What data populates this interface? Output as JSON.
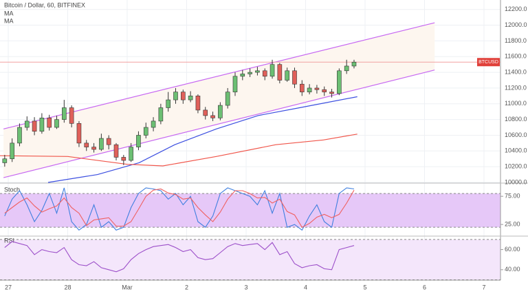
{
  "chart_data": [
    {
      "type": "candlestick",
      "title": "Bitcoin / Dollar, 60, BITFINEX",
      "x": [
        -0.06,
        0.065,
        0.19,
        0.315,
        0.44,
        0.565,
        0.69,
        0.815,
        0.94,
        1.065,
        1.19,
        1.315,
        1.44,
        1.565,
        1.69,
        1.815,
        1.94,
        2.065,
        2.19,
        2.315,
        2.44,
        2.565,
        2.69,
        2.815,
        2.94,
        3.065,
        3.19,
        3.315,
        3.44,
        3.565,
        3.69,
        3.815,
        3.94,
        4.065,
        4.19,
        4.315,
        4.44,
        4.565,
        4.69,
        4.815,
        4.94,
        5.065,
        5.19,
        5.315,
        5.44,
        5.565,
        5.69,
        5.815
      ],
      "open": [
        10250,
        10300,
        10500,
        10700,
        10780,
        10650,
        10820,
        10700,
        10800,
        10950,
        10750,
        10500,
        10450,
        10420,
        10560,
        10480,
        10320,
        10280,
        10450,
        10600,
        10700,
        10780,
        10950,
        11050,
        11150,
        11050,
        11100,
        10920,
        10850,
        10820,
        10980,
        11150,
        11350,
        11380,
        11400,
        11420,
        11350,
        11500,
        11300,
        11420,
        11250,
        11150,
        11200,
        11180,
        11150,
        11130,
        11420,
        11480
      ],
      "high": [
        10350,
        10560,
        10750,
        10840,
        10830,
        10880,
        10860,
        10850,
        11050,
        10980,
        10780,
        10540,
        10500,
        10620,
        10600,
        10500,
        10350,
        10500,
        10650,
        10760,
        10830,
        11000,
        11150,
        11200,
        11180,
        11160,
        11120,
        10960,
        10900,
        11020,
        11200,
        11400,
        11430,
        11450,
        11470,
        11450,
        11560,
        11520,
        11460,
        11460,
        11300,
        11250,
        11240,
        11220,
        11190,
        11450,
        11560,
        11560
      ],
      "low": [
        10200,
        10260,
        10460,
        10660,
        10600,
        10620,
        10660,
        10680,
        10760,
        10700,
        10450,
        10400,
        10380,
        10400,
        10420,
        10280,
        10220,
        10260,
        10410,
        10560,
        10650,
        10740,
        10900,
        11000,
        11000,
        11020,
        10880,
        10800,
        10780,
        10790,
        10940,
        11100,
        11300,
        11340,
        11360,
        11300,
        11320,
        11260,
        11280,
        11200,
        11100,
        11120,
        11130,
        11100,
        11080,
        11110,
        11380,
        11450
      ],
      "close": [
        10300,
        10500,
        10700,
        10780,
        10650,
        10820,
        10700,
        10800,
        10950,
        10750,
        10500,
        10450,
        10420,
        10560,
        10480,
        10320,
        10280,
        10450,
        10600,
        10700,
        10780,
        10950,
        11050,
        11150,
        11050,
        11100,
        10920,
        10850,
        10820,
        10980,
        11150,
        11350,
        11380,
        11400,
        11420,
        11350,
        11500,
        11300,
        11420,
        11250,
        11150,
        11200,
        11180,
        11150,
        11130,
        11420,
        11480,
        11530
      ],
      "up_color": "#6cbf73",
      "down_color": "#e0605a",
      "ma": [
        {
          "name": "MA",
          "color": "#3b4ee0",
          "x": [
            0.67,
            1.5,
            2.2,
            2.8,
            3.5,
            4.2,
            4.9,
            5.87
          ],
          "values": [
            10000,
            10100,
            10250,
            10480,
            10680,
            10850,
            10950,
            11090
          ]
        },
        {
          "name": "MA",
          "color": "#f0554a",
          "x": [
            -0.14,
            1,
            2,
            2.6,
            3.5,
            4.5,
            5.3,
            5.87
          ],
          "values": [
            10340,
            10330,
            10230,
            10210,
            10330,
            10480,
            10540,
            10615
          ]
        }
      ],
      "channel_color": "#c768f2",
      "channel": [
        {
          "x": [
            -0.08,
            7.17
          ],
          "values": [
            10680,
            12030
          ]
        },
        {
          "x": [
            -0.08,
            7.17
          ],
          "values": [
            10060,
            11430
          ]
        }
      ],
      "last_price": 11530,
      "last_price_label": "BTCUSD",
      "xlim": [
        -0.139,
        8.278
      ],
      "xticks": [
        {
          "value": 0,
          "label": "27"
        },
        {
          "value": 1,
          "label": "28"
        },
        {
          "value": 2,
          "label": "Mar"
        },
        {
          "value": 3,
          "label": "2"
        },
        {
          "value": 4,
          "label": "3"
        },
        {
          "value": 5,
          "label": "4"
        },
        {
          "value": 6,
          "label": "5"
        },
        {
          "value": 7,
          "label": "6"
        },
        {
          "value": 8,
          "label": "7"
        }
      ],
      "ylim": [
        10000,
        12320
      ],
      "yticks": [
        {
          "value": 10000,
          "label": "10000.0"
        },
        {
          "value": 10200,
          "label": "10200.0"
        },
        {
          "value": 10400,
          "label": "10400.0"
        },
        {
          "value": 10600,
          "label": "10600.0"
        },
        {
          "value": 10800,
          "label": "10800.0"
        },
        {
          "value": 11000,
          "label": "11000.0"
        },
        {
          "value": 11200,
          "label": "11200.0"
        },
        {
          "value": 11400,
          "label": "11400.0"
        },
        {
          "value": 11600,
          "label": "11600.0"
        },
        {
          "value": 11800,
          "label": "11800.0"
        },
        {
          "value": 12000,
          "label": "12000.0"
        },
        {
          "value": 12200,
          "label": "12200.0"
        }
      ],
      "grid": true
    },
    {
      "type": "line",
      "title": "Stoch",
      "x": [
        -0.06,
        0.065,
        0.19,
        0.315,
        0.44,
        0.565,
        0.69,
        0.815,
        0.94,
        1.065,
        1.19,
        1.315,
        1.44,
        1.565,
        1.69,
        1.815,
        1.94,
        2.065,
        2.19,
        2.315,
        2.44,
        2.565,
        2.69,
        2.815,
        2.94,
        3.065,
        3.19,
        3.315,
        3.44,
        3.565,
        3.69,
        3.815,
        3.94,
        4.065,
        4.19,
        4.315,
        4.44,
        4.565,
        4.69,
        4.815,
        4.94,
        5.065,
        5.19,
        5.315,
        5.44,
        5.565,
        5.69,
        5.815
      ],
      "series": [
        {
          "color": "#3f7fdf",
          "values": [
            40,
            70,
            85,
            60,
            30,
            50,
            80,
            45,
            90,
            30,
            15,
            25,
            60,
            20,
            30,
            15,
            20,
            55,
            80,
            90,
            88,
            85,
            70,
            80,
            60,
            75,
            30,
            20,
            40,
            80,
            90,
            85,
            80,
            75,
            60,
            85,
            45,
            80,
            20,
            25,
            15,
            40,
            60,
            30,
            20,
            80,
            90,
            88
          ]
        },
        {
          "color": "#f06060",
          "values": [
            45,
            55,
            65,
            72,
            58,
            47,
            53,
            58,
            72,
            55,
            45,
            23,
            33,
            35,
            37,
            22,
            22,
            30,
            52,
            75,
            86,
            88,
            81,
            78,
            70,
            72,
            55,
            42,
            30,
            47,
            70,
            85,
            85,
            80,
            72,
            73,
            63,
            70,
            48,
            42,
            20,
            27,
            38,
            43,
            37,
            43,
            63,
            86
          ]
        }
      ],
      "band": [
        20,
        80
      ],
      "band_color": "#e6c8f8",
      "ylim": [
        8,
        96
      ],
      "yticks": [
        {
          "value": 25,
          "label": "25.00"
        },
        {
          "value": 75,
          "label": "75.00"
        }
      ]
    },
    {
      "type": "line",
      "title": "RSI",
      "x": [
        -0.06,
        0.065,
        0.19,
        0.315,
        0.44,
        0.565,
        0.69,
        0.815,
        0.94,
        1.065,
        1.19,
        1.315,
        1.44,
        1.565,
        1.69,
        1.815,
        1.94,
        2.065,
        2.19,
        2.315,
        2.44,
        2.565,
        2.69,
        2.815,
        2.94,
        3.065,
        3.19,
        3.315,
        3.44,
        3.565,
        3.69,
        3.815,
        3.94,
        4.065,
        4.19,
        4.315,
        4.44,
        4.565,
        4.69,
        4.815,
        4.94,
        5.065,
        5.19,
        5.315,
        5.44,
        5.565,
        5.69,
        5.815
      ],
      "series": [
        {
          "color": "#9c4fc9",
          "values": [
            62,
            68,
            66,
            64,
            55,
            60,
            58,
            57,
            62,
            50,
            45,
            44,
            48,
            42,
            40,
            38,
            41,
            50,
            56,
            60,
            63,
            64,
            65,
            62,
            58,
            60,
            52,
            50,
            51,
            57,
            63,
            66,
            64,
            65,
            66,
            60,
            67,
            55,
            58,
            46,
            42,
            44,
            45,
            41,
            40,
            60,
            62,
            64
          ]
        }
      ],
      "band": [
        30,
        70
      ],
      "band_color": "#f4e6fb",
      "ylim": [
        31,
        72
      ],
      "yticks": [
        {
          "value": 40,
          "label": "40.00"
        },
        {
          "value": 60,
          "label": "60.00"
        }
      ]
    }
  ]
}
